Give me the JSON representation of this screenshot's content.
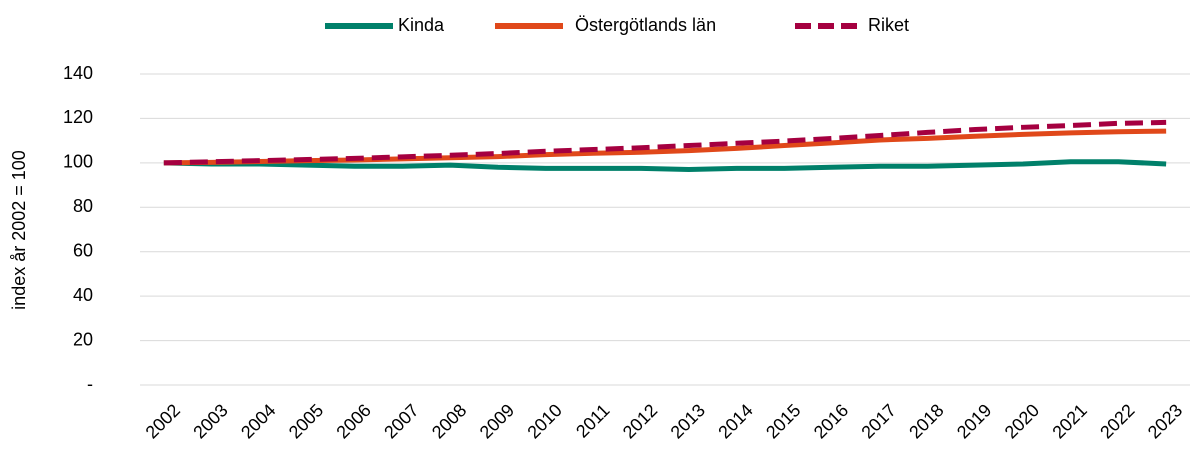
{
  "chart_data": {
    "type": "line",
    "y_label": "index år 2002 = 100",
    "categories": [
      "2002",
      "2003",
      "2004",
      "2005",
      "2006",
      "2007",
      "2008",
      "2009",
      "2010",
      "2011",
      "2012",
      "2013",
      "2014",
      "2015",
      "2016",
      "2017",
      "2018",
      "2019",
      "2020",
      "2021",
      "2022",
      "2023"
    ],
    "series": [
      {
        "name": "Kinda",
        "color": "#00806a",
        "dashed": false,
        "values": [
          100,
          99.5,
          99.5,
          99,
          98.5,
          98.5,
          99,
          98,
          97.5,
          97.5,
          97.5,
          97,
          97.5,
          97.5,
          98,
          98.5,
          98.5,
          99,
          99.5,
          100.5,
          100.5,
          99.5
        ]
      },
      {
        "name": "Östergötlands län",
        "color": "#e0481a",
        "dashed": false,
        "values": [
          100,
          100.2,
          100.6,
          101,
          101.3,
          101.8,
          102.3,
          102.8,
          103.7,
          104.3,
          104.8,
          105.5,
          106.5,
          107.8,
          109,
          110.3,
          111,
          112,
          112.8,
          113.5,
          114,
          114.3
        ]
      },
      {
        "name": "Riket",
        "color": "#a50040",
        "dashed": true,
        "values": [
          100,
          100.5,
          101,
          101.5,
          102,
          102.7,
          103.4,
          104.2,
          105.2,
          106,
          106.8,
          107.8,
          108.8,
          109.8,
          111,
          112.3,
          113.7,
          115,
          116,
          116.8,
          117.8,
          118.2
        ]
      }
    ],
    "ylim": [
      0,
      140
    ],
    "yticks": [
      {
        "value": 0,
        "label": "-"
      },
      20,
      40,
      60,
      80,
      100,
      120,
      140
    ],
    "grid": true,
    "legend": "top"
  }
}
